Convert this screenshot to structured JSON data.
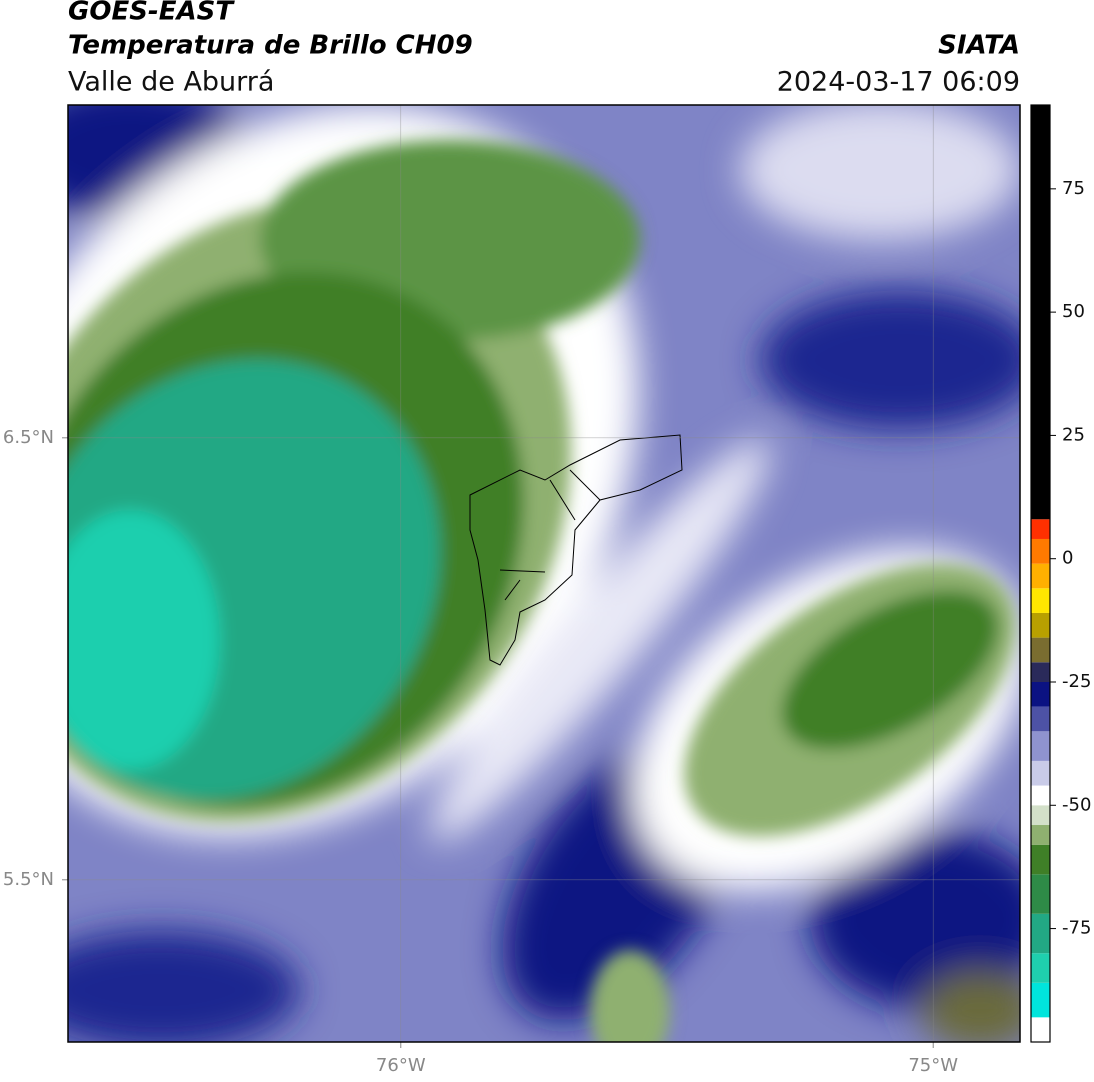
{
  "header": {
    "title": "GOES-EAST",
    "subtitle": "Temperatura de Brillo CH09",
    "source": "SIATA",
    "region": "Valle de Aburrá",
    "datetime": "2024-03-17 06:09"
  },
  "map": {
    "lonlim": [
      -76.625,
      -74.837
    ],
    "latlim": [
      5.133,
      7.253
    ],
    "lonticks": [
      {
        "value": -76,
        "label": "76°W"
      },
      {
        "value": -75,
        "label": "75°W"
      }
    ],
    "latticks": [
      {
        "value": 6.5,
        "label": "6.5°N"
      },
      {
        "value": 5.5,
        "label": "5.5°N"
      }
    ],
    "grid": true
  },
  "colorbar": {
    "lim": [
      -98,
      92
    ],
    "ticks": [
      75,
      50,
      25,
      0,
      -25,
      -50,
      -75
    ],
    "colormap": [
      {
        "value": -98,
        "color": "#ffffff"
      },
      {
        "value": -93,
        "color": "#00e5dc"
      },
      {
        "value": -86,
        "color": "#1fcfae"
      },
      {
        "value": -80,
        "color": "#22a884"
      },
      {
        "value": -72,
        "color": "#2e8b47"
      },
      {
        "value": -64,
        "color": "#3f7f27"
      },
      {
        "value": -58,
        "color": "#8fb070"
      },
      {
        "value": -54,
        "color": "#d3e0c9"
      },
      {
        "value": -50,
        "color": "#ffffff"
      },
      {
        "value": -46,
        "color": "#c9cbe8"
      },
      {
        "value": -41,
        "color": "#8f93cf"
      },
      {
        "value": -35,
        "color": "#4d52a6"
      },
      {
        "value": -30,
        "color": "#0b1282"
      },
      {
        "value": -25,
        "color": "#2a2a5a"
      },
      {
        "value": -21,
        "color": "#7a6d30"
      },
      {
        "value": -16,
        "color": "#b8a000"
      },
      {
        "value": -11,
        "color": "#ffe600"
      },
      {
        "value": -6,
        "color": "#ffb000"
      },
      {
        "value": -1,
        "color": "#ff7a00"
      },
      {
        "value": 4,
        "color": "#ff3000"
      },
      {
        "value": 8,
        "color": "#000000"
      }
    ]
  }
}
